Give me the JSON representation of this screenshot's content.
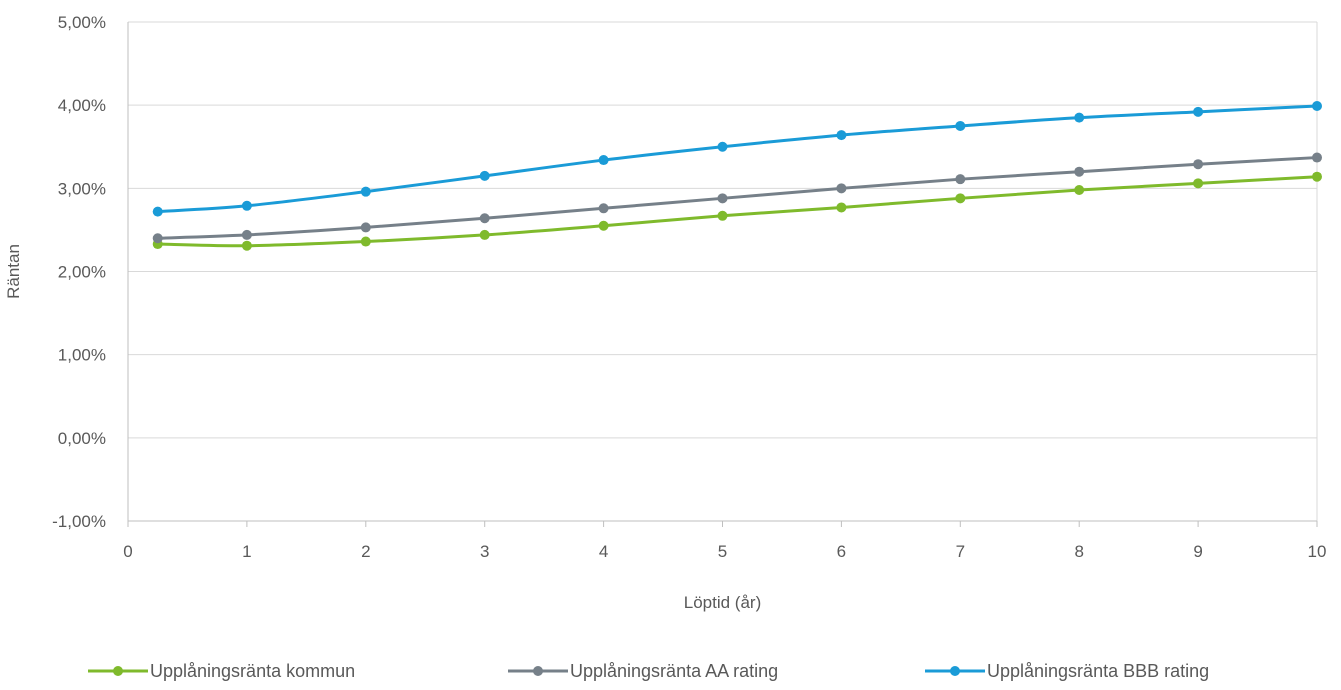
{
  "chart_data": {
    "type": "line",
    "title": "",
    "xlabel": "Löptid (år)",
    "ylabel": "Räntan",
    "xlim": [
      0,
      10
    ],
    "ylim": [
      -1.0,
      5.0
    ],
    "x_ticks": [
      0,
      1,
      2,
      3,
      4,
      5,
      6,
      7,
      8,
      9,
      10
    ],
    "x_tick_labels": [
      "0",
      "1",
      "2",
      "3",
      "4",
      "5",
      "6",
      "7",
      "8",
      "9",
      "10"
    ],
    "y_ticks": [
      -1.0,
      0.0,
      1.0,
      2.0,
      3.0,
      4.0,
      5.0
    ],
    "y_tick_labels": [
      "-1,00%",
      "0,00%",
      "1,00%",
      "2,00%",
      "3,00%",
      "4,00%",
      "5,00%"
    ],
    "grid": true,
    "legend_position": "bottom",
    "x": [
      0.25,
      1,
      2,
      3,
      4,
      5,
      6,
      7,
      8,
      9,
      10
    ],
    "series": [
      {
        "name": "Upplåningsränta kommun",
        "color": "#7fba2c",
        "values": [
          2.33,
          2.31,
          2.36,
          2.44,
          2.55,
          2.67,
          2.77,
          2.88,
          2.98,
          3.06,
          3.14
        ]
      },
      {
        "name": "Upplåningsränta AA rating",
        "color": "#768089",
        "values": [
          2.4,
          2.44,
          2.53,
          2.64,
          2.76,
          2.88,
          3.0,
          3.11,
          3.2,
          3.29,
          3.37
        ]
      },
      {
        "name": "Upplåningsränta BBB rating",
        "color": "#1a9bd7",
        "values": [
          2.72,
          2.79,
          2.96,
          3.15,
          3.34,
          3.5,
          3.64,
          3.75,
          3.85,
          3.92,
          3.99
        ]
      }
    ]
  }
}
